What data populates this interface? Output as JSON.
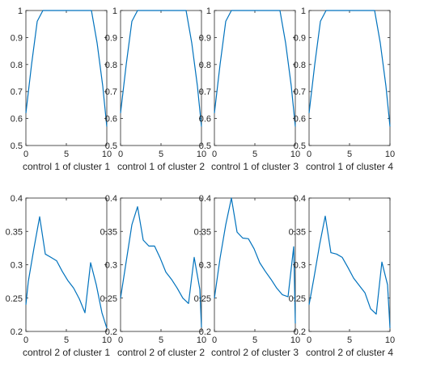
{
  "line_color": "#0072BD",
  "chart_data": [
    {
      "type": "line",
      "xlabel": "control 1 of cluster 1",
      "xlim": [
        0,
        10
      ],
      "ylim": [
        0.5,
        1
      ],
      "xticks": [
        0,
        5,
        10
      ],
      "yticks": [
        0.5,
        0.6,
        0.7,
        0.8,
        0.9,
        1
      ],
      "series": [
        {
          "x": [
            0,
            0.7,
            1.4,
            2.1,
            8.1,
            8.8,
            9.5,
            10
          ],
          "y": [
            0.62,
            0.8,
            0.96,
            1.0,
            1.0,
            0.88,
            0.72,
            0.57
          ]
        }
      ]
    },
    {
      "type": "line",
      "xlabel": "control 1 of cluster 2",
      "xlim": [
        0,
        10
      ],
      "ylim": [
        0.5,
        1
      ],
      "xticks": [
        0,
        5,
        10
      ],
      "yticks": [
        0.5,
        0.6,
        0.7,
        0.8,
        0.9,
        1
      ],
      "series": [
        {
          "x": [
            0,
            0.7,
            1.4,
            2.1,
            8.1,
            8.8,
            9.5,
            10
          ],
          "y": [
            0.62,
            0.8,
            0.96,
            1.0,
            1.0,
            0.88,
            0.72,
            0.57
          ]
        }
      ]
    },
    {
      "type": "line",
      "xlabel": "control 1 of cluster 3",
      "xlim": [
        0,
        10
      ],
      "ylim": [
        0.5,
        1
      ],
      "xticks": [
        0,
        5,
        10
      ],
      "yticks": [
        0.5,
        0.6,
        0.7,
        0.8,
        0.9,
        1
      ],
      "series": [
        {
          "x": [
            0,
            0.7,
            1.4,
            2.1,
            8.1,
            8.8,
            9.5,
            10
          ],
          "y": [
            0.62,
            0.8,
            0.96,
            1.0,
            1.0,
            0.88,
            0.72,
            0.57
          ]
        }
      ]
    },
    {
      "type": "line",
      "xlabel": "control 1 of cluster 4",
      "xlim": [
        0,
        10
      ],
      "ylim": [
        0.5,
        1
      ],
      "xticks": [
        0,
        5,
        10
      ],
      "yticks": [
        0.5,
        0.6,
        0.7,
        0.8,
        0.9,
        1
      ],
      "series": [
        {
          "x": [
            0,
            0.7,
            1.4,
            2.1,
            8.1,
            8.8,
            9.5,
            10
          ],
          "y": [
            0.62,
            0.8,
            0.96,
            1.0,
            1.0,
            0.88,
            0.72,
            0.57
          ]
        }
      ]
    },
    {
      "type": "line",
      "xlabel": "control 2 of cluster 1",
      "xlim": [
        0,
        10
      ],
      "ylim": [
        0.2,
        0.4
      ],
      "xticks": [
        0,
        5,
        10
      ],
      "yticks": [
        0.2,
        0.25,
        0.3,
        0.35,
        0.4
      ],
      "series": [
        {
          "x": [
            0,
            0.3,
            1.0,
            1.7,
            2.4,
            3.1,
            3.8,
            4.5,
            5.2,
            5.9,
            6.6,
            7.3,
            8.0,
            8.7,
            9.4,
            10
          ],
          "y": [
            0.24,
            0.275,
            0.325,
            0.372,
            0.316,
            0.311,
            0.306,
            0.29,
            0.276,
            0.265,
            0.249,
            0.228,
            0.303,
            0.27,
            0.228,
            0.205
          ]
        }
      ]
    },
    {
      "type": "line",
      "xlabel": "control 2 of cluster 2",
      "xlim": [
        0,
        10
      ],
      "ylim": [
        0.2,
        0.4
      ],
      "xticks": [
        0,
        5,
        10
      ],
      "yticks": [
        0.2,
        0.25,
        0.3,
        0.35,
        0.4
      ],
      "series": [
        {
          "x": [
            0,
            0.7,
            1.4,
            2.1,
            2.8,
            3.5,
            4.2,
            4.9,
            5.6,
            6.3,
            7.0,
            7.7,
            8.4,
            9.1,
            9.8,
            10
          ],
          "y": [
            0.25,
            0.305,
            0.36,
            0.387,
            0.337,
            0.328,
            0.328,
            0.31,
            0.289,
            0.278,
            0.265,
            0.25,
            0.242,
            0.311,
            0.263,
            0.206
          ]
        }
      ]
    },
    {
      "type": "line",
      "xlabel": "control 2 of cluster 3",
      "xlim": [
        0,
        10
      ],
      "ylim": [
        0.2,
        0.4
      ],
      "xticks": [
        0,
        5,
        10
      ],
      "yticks": [
        0.2,
        0.25,
        0.3,
        0.35,
        0.4
      ],
      "series": [
        {
          "x": [
            0,
            0.7,
            1.4,
            2.1,
            2.8,
            3.5,
            4.2,
            4.9,
            5.6,
            6.3,
            7.0,
            7.7,
            8.4,
            9.1,
            9.8,
            10
          ],
          "y": [
            0.25,
            0.31,
            0.36,
            0.4,
            0.349,
            0.34,
            0.339,
            0.324,
            0.303,
            0.29,
            0.278,
            0.265,
            0.255,
            0.252,
            0.327,
            0.212
          ]
        }
      ]
    },
    {
      "type": "line",
      "xlabel": "control 2 of cluster 4",
      "xlim": [
        0,
        10
      ],
      "ylim": [
        0.2,
        0.4
      ],
      "xticks": [
        0,
        5,
        10
      ],
      "yticks": [
        0.2,
        0.25,
        0.3,
        0.35,
        0.4
      ],
      "series": [
        {
          "x": [
            0,
            0.6,
            1.3,
            2.0,
            2.7,
            3.4,
            4.1,
            4.8,
            5.5,
            6.2,
            6.9,
            7.6,
            8.3,
            9.0,
            9.7,
            10
          ],
          "y": [
            0.24,
            0.28,
            0.33,
            0.373,
            0.318,
            0.316,
            0.311,
            0.296,
            0.28,
            0.269,
            0.258,
            0.234,
            0.226,
            0.304,
            0.27,
            0.205
          ]
        }
      ]
    }
  ]
}
